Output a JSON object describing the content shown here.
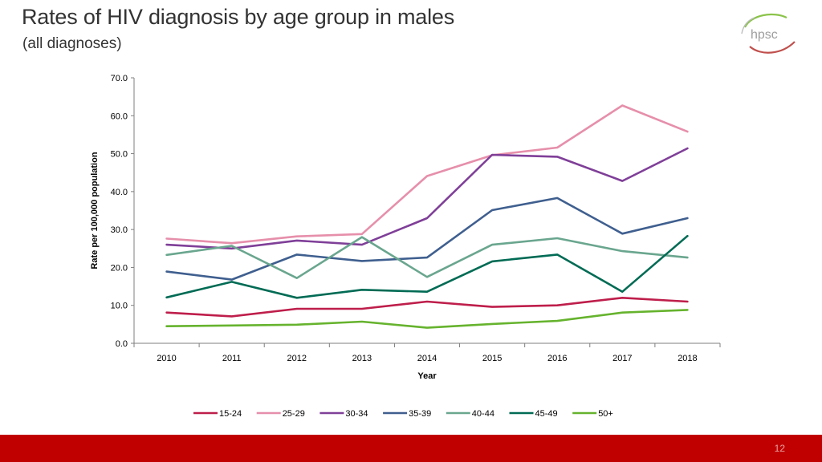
{
  "slide": {
    "title": "Rates of HIV diagnosis by age group in males",
    "subtitle": "(all diagnoses)",
    "logo_text": "hpsc",
    "page_number": "12"
  },
  "colors": {
    "footer": "#c00000",
    "logo_swoosh_green": "#8bc34a",
    "logo_swoosh_red": "#c0504d",
    "logo_text": "#9e9e9e"
  },
  "chart_data": {
    "type": "line",
    "title": "",
    "xlabel": "Year",
    "ylabel": "Rate per 100,000 population",
    "ylim": [
      0,
      70
    ],
    "y_ticks": [
      "0.0",
      "10.0",
      "20.0",
      "30.0",
      "40.0",
      "50.0",
      "60.0",
      "70.0"
    ],
    "categories": [
      "2010",
      "2011",
      "2012",
      "2013",
      "2014",
      "2015",
      "2016",
      "2017",
      "2018"
    ],
    "grid": false,
    "legend_position": "bottom",
    "series": [
      {
        "name": "15-24",
        "color": "#be1e4b",
        "values": [
          8.1,
          7.1,
          9.1,
          9.1,
          11.0,
          9.6,
          10.0,
          12.0,
          11.0
        ]
      },
      {
        "name": "25-29",
        "color": "#e68fab",
        "values": [
          27.6,
          26.4,
          28.2,
          28.8,
          44.1,
          49.6,
          51.6,
          62.7,
          55.8
        ]
      },
      {
        "name": "30-34",
        "color": "#7f3f98",
        "values": [
          26.0,
          25.0,
          27.1,
          26.0,
          33.0,
          49.7,
          49.2,
          42.8,
          51.4
        ]
      },
      {
        "name": "35-39",
        "color": "#3f5f8f",
        "values": [
          18.9,
          16.8,
          23.4,
          21.7,
          22.6,
          35.1,
          38.3,
          28.9,
          33.0
        ]
      },
      {
        "name": "40-44",
        "color": "#6aa68f",
        "values": [
          23.3,
          25.7,
          17.2,
          28.0,
          17.5,
          26.0,
          27.7,
          24.3,
          22.6
        ]
      },
      {
        "name": "45-49",
        "color": "#006b54",
        "values": [
          12.1,
          16.2,
          12.0,
          14.1,
          13.6,
          21.6,
          23.4,
          13.6,
          28.3
        ]
      },
      {
        "name": "50+",
        "color": "#66b32e",
        "values": [
          4.5,
          4.7,
          4.9,
          5.7,
          4.1,
          5.1,
          5.9,
          8.1,
          8.8
        ]
      }
    ]
  }
}
